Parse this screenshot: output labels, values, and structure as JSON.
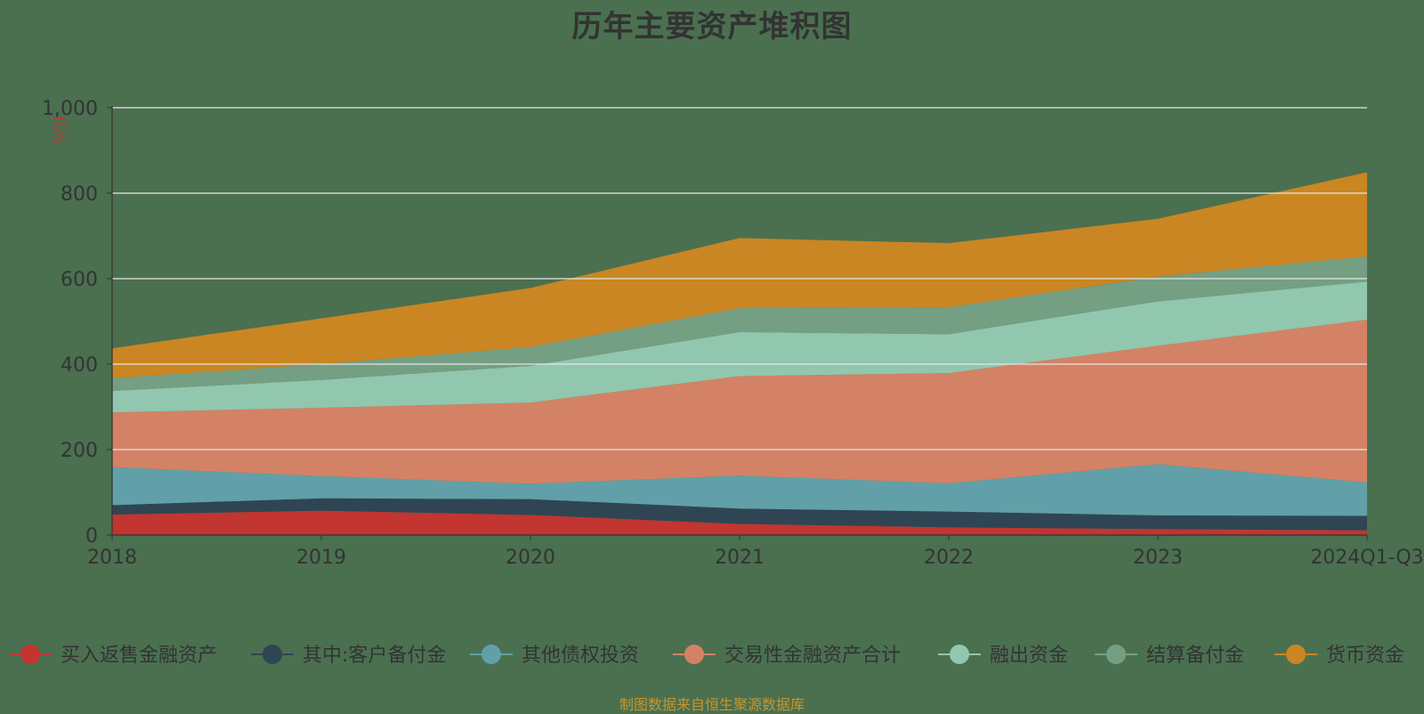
{
  "chart_data": {
    "type": "area",
    "title": "历年主要资产堆积图",
    "ylabel": "亿元",
    "ylim": [
      0,
      1000
    ],
    "yticks": [
      "0",
      "200",
      "400",
      "600",
      "800",
      "1,000"
    ],
    "ytick_values": [
      0,
      200,
      400,
      600,
      800,
      1000
    ],
    "grid": true,
    "legend": "bottom",
    "x": [
      "2018",
      "2019",
      "2020",
      "2021",
      "2022",
      "2023",
      "2024Q1-Q3"
    ],
    "stacked": true,
    "series": [
      {
        "name": "买入返售金融资产",
        "color": "#c23531",
        "values": [
          48,
          57,
          47,
          26,
          18,
          14,
          11
        ]
      },
      {
        "name": "其中:客户备付金",
        "color": "#2f4554",
        "values": [
          22,
          29,
          37,
          36,
          37,
          32,
          34
        ]
      },
      {
        "name": "其他债权投资",
        "color": "#61a0a8",
        "values": [
          89,
          52,
          36,
          77,
          66,
          120,
          78
        ]
      },
      {
        "name": "交易性金融资产合计",
        "color": "#d48265",
        "values": [
          128,
          160,
          190,
          233,
          258,
          277,
          381
        ]
      },
      {
        "name": "融出资金",
        "color": "#91c7ae",
        "values": [
          50,
          65,
          86,
          103,
          91,
          104,
          89
        ]
      },
      {
        "name": "结算备付金",
        "color": "#749f83",
        "values": [
          30,
          37,
          44,
          56,
          63,
          58,
          59
        ]
      },
      {
        "name": "货币资金",
        "color": "#ca8622",
        "values": [
          70,
          107,
          138,
          164,
          150,
          135,
          197
        ]
      }
    ]
  },
  "footer": {
    "source": "制图数据来自恒生聚源数据库"
  }
}
